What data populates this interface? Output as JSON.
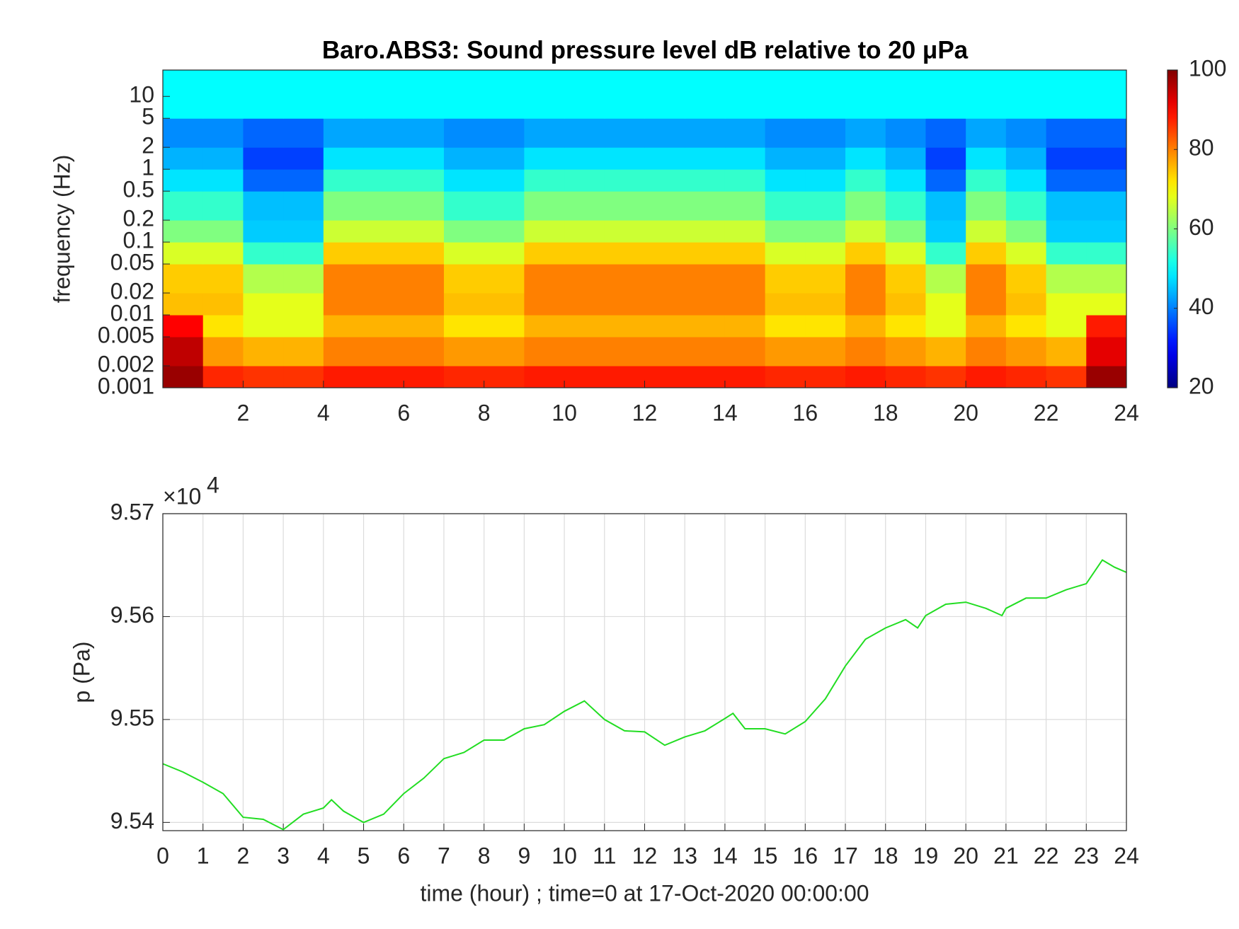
{
  "chart_data": [
    {
      "type": "heatmap",
      "title": "Baro.ABS3: Sound pressure level dB relative to 20 μPa",
      "ylabel": "frequency (Hz)",
      "yscale": "log",
      "colormap": "jet",
      "x_bins": [
        0,
        1,
        2,
        3,
        4,
        5,
        6,
        7,
        8,
        9,
        10,
        11,
        12,
        13,
        14,
        15,
        16,
        17,
        18,
        19,
        20,
        21,
        22,
        23,
        24
      ],
      "y_bins": [
        0.001,
        0.002,
        0.005,
        0.01,
        0.02,
        0.05,
        0.1,
        0.2,
        0.5,
        1,
        2,
        5,
        23
      ],
      "values": [
        [
          98,
          87,
          86,
          86,
          88,
          88,
          88,
          87,
          87,
          88,
          88,
          88,
          88,
          88,
          88,
          87,
          87,
          88,
          87,
          86,
          88,
          87,
          86,
          98
        ],
        [
          95,
          78,
          76,
          76,
          80,
          80,
          80,
          78,
          78,
          80,
          80,
          80,
          80,
          80,
          80,
          78,
          78,
          80,
          78,
          76,
          80,
          78,
          76,
          92
        ],
        [
          90,
          72,
          68,
          68,
          76,
          76,
          76,
          72,
          72,
          76,
          76,
          76,
          76,
          76,
          76,
          72,
          72,
          76,
          72,
          68,
          76,
          72,
          68,
          88
        ],
        [
          75,
          75,
          68,
          68,
          80,
          80,
          80,
          75,
          75,
          80,
          80,
          80,
          80,
          80,
          80,
          75,
          75,
          80,
          75,
          68,
          80,
          75,
          68,
          68
        ],
        [
          74,
          74,
          64,
          64,
          80,
          80,
          80,
          74,
          74,
          80,
          80,
          80,
          80,
          80,
          80,
          74,
          74,
          80,
          74,
          64,
          80,
          74,
          64,
          64
        ],
        [
          67,
          67,
          54,
          54,
          74,
          74,
          74,
          67,
          67,
          74,
          74,
          74,
          74,
          74,
          74,
          67,
          67,
          74,
          67,
          54,
          74,
          67,
          54,
          54
        ],
        [
          60,
          60,
          46,
          46,
          66,
          66,
          66,
          60,
          60,
          66,
          66,
          66,
          66,
          66,
          66,
          60,
          60,
          66,
          60,
          46,
          66,
          60,
          46,
          46
        ],
        [
          54,
          54,
          45,
          45,
          60,
          60,
          60,
          54,
          54,
          60,
          60,
          60,
          60,
          60,
          60,
          54,
          54,
          60,
          54,
          45,
          60,
          54,
          45,
          45
        ],
        [
          48,
          48,
          38,
          38,
          54,
          54,
          54,
          48,
          48,
          54,
          54,
          54,
          54,
          54,
          54,
          48,
          48,
          54,
          48,
          38,
          54,
          48,
          38,
          38
        ],
        [
          44,
          44,
          35,
          35,
          48,
          48,
          48,
          44,
          44,
          48,
          48,
          48,
          48,
          48,
          48,
          44,
          44,
          48,
          44,
          35,
          48,
          44,
          35,
          35
        ],
        [
          41,
          41,
          38,
          38,
          43,
          43,
          43,
          41,
          41,
          43,
          43,
          43,
          43,
          43,
          43,
          41,
          41,
          43,
          41,
          38,
          43,
          41,
          38,
          38
        ],
        [
          50,
          50,
          50,
          50,
          50,
          50,
          50,
          50,
          50,
          50,
          50,
          50,
          50,
          50,
          50,
          50,
          50,
          50,
          50,
          50,
          50,
          50,
          50,
          50
        ]
      ],
      "xlim": [
        0,
        24
      ],
      "xticks": [
        2,
        4,
        6,
        8,
        10,
        12,
        14,
        16,
        18,
        20,
        22,
        24
      ],
      "ylim": [
        0.001,
        23
      ],
      "yticks": [
        0.001,
        0.002,
        0.005,
        0.01,
        0.02,
        0.05,
        0.1,
        0.2,
        0.5,
        1,
        2,
        5,
        10
      ],
      "clim": [
        20,
        100
      ],
      "cticks": [
        20,
        40,
        60,
        80,
        100
      ]
    },
    {
      "type": "line",
      "xlabel": "time (hour) ; time=0 at 17-Oct-2020 00:00:00",
      "ylabel": "p (Pa)",
      "y_multiplier_label": "×10",
      "y_multiplier_exponent": "4",
      "grid": true,
      "x": [
        0,
        0.5,
        1,
        1.5,
        2,
        2.5,
        3,
        3.5,
        4,
        4.2,
        4.5,
        5,
        5.5,
        6,
        6.5,
        7,
        7.5,
        8,
        8.5,
        9,
        9.5,
        10,
        10.5,
        11,
        11.5,
        12,
        12.5,
        13,
        13.5,
        14,
        14.2,
        14.5,
        15,
        15.5,
        16,
        16.5,
        17,
        17.5,
        18,
        18.5,
        18.8,
        19,
        19.5,
        20,
        20.5,
        20.9,
        21,
        21.5,
        22,
        22.5,
        23,
        23.4,
        23.7,
        24
      ],
      "series": [
        {
          "name": "p",
          "color": "#22dd22",
          "values": [
            95457,
            95449,
            95439,
            95428,
            95405,
            95403,
            95393,
            95408,
            95414,
            95422,
            95411,
            95400,
            95408,
            95428,
            95443,
            95462,
            95468,
            95480,
            95480,
            95491,
            95495,
            95508,
            95518,
            95500,
            95489,
            95488,
            95475,
            95483,
            95489,
            95501,
            95506,
            95491,
            95491,
            95486,
            95498,
            95520,
            95552,
            95578,
            95589,
            95597,
            95589,
            95601,
            95612,
            95614,
            95608,
            95601,
            95608,
            95618,
            95618,
            95626,
            95632,
            95655,
            95648,
            95643
          ]
        }
      ],
      "xlim": [
        0,
        24
      ],
      "xticks": [
        0,
        1,
        2,
        3,
        4,
        5,
        6,
        7,
        8,
        9,
        10,
        11,
        12,
        13,
        14,
        15,
        16,
        17,
        18,
        19,
        20,
        21,
        22,
        23,
        24
      ],
      "ylim": [
        95392,
        95700
      ],
      "yticks": [
        {
          "value": 95400,
          "label": "9.54"
        },
        {
          "value": 95500,
          "label": "9.55"
        },
        {
          "value": 95600,
          "label": "9.56"
        },
        {
          "value": 95700,
          "label": "9.57"
        }
      ]
    }
  ]
}
